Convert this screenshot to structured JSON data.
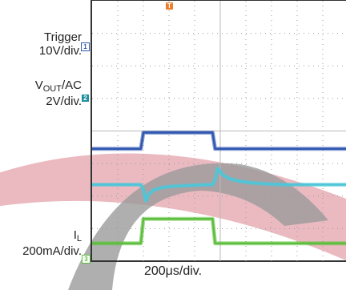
{
  "chart_data": {
    "type": "line",
    "title": "",
    "timebase": "200μs/div.",
    "grid": true,
    "divisions": {
      "x": 10,
      "y": 8
    },
    "x_unit": "μs",
    "xlim": [
      -400,
      1600
    ],
    "channels": [
      {
        "id": "1",
        "name": "Trigger",
        "scale": "10V/div.",
        "color": "#2f56b0",
        "x": [
          -400,
          -20,
          0,
          20,
          540,
          560,
          1600
        ],
        "y_div": [
          3.45,
          3.45,
          3.95,
          3.95,
          3.95,
          3.45,
          3.45
        ]
      },
      {
        "id": "2",
        "name": "V",
        "name_sub": "OUT",
        "name_suffix": "/AC",
        "scale": "2V/div.",
        "color": "#4cc6d8",
        "x": [
          -400,
          -20,
          0,
          20,
          40,
          80,
          140,
          220,
          320,
          440,
          540,
          560,
          580,
          620,
          680,
          760,
          860,
          980,
          1100,
          1600
        ],
        "y_div": [
          2.35,
          2.35,
          2.2,
          1.85,
          2.05,
          2.18,
          2.26,
          2.3,
          2.32,
          2.34,
          2.35,
          2.5,
          2.85,
          2.65,
          2.52,
          2.45,
          2.4,
          2.37,
          2.35,
          2.35
        ]
      },
      {
        "id": "3",
        "name": "I",
        "name_sub": "L",
        "scale": "200mA/div.",
        "color": "#5cbf3c",
        "x": [
          -400,
          -20,
          0,
          20,
          540,
          560,
          1600
        ],
        "y_div": [
          0.55,
          0.55,
          1.3,
          1.3,
          1.3,
          0.55,
          0.55
        ]
      }
    ]
  }
}
